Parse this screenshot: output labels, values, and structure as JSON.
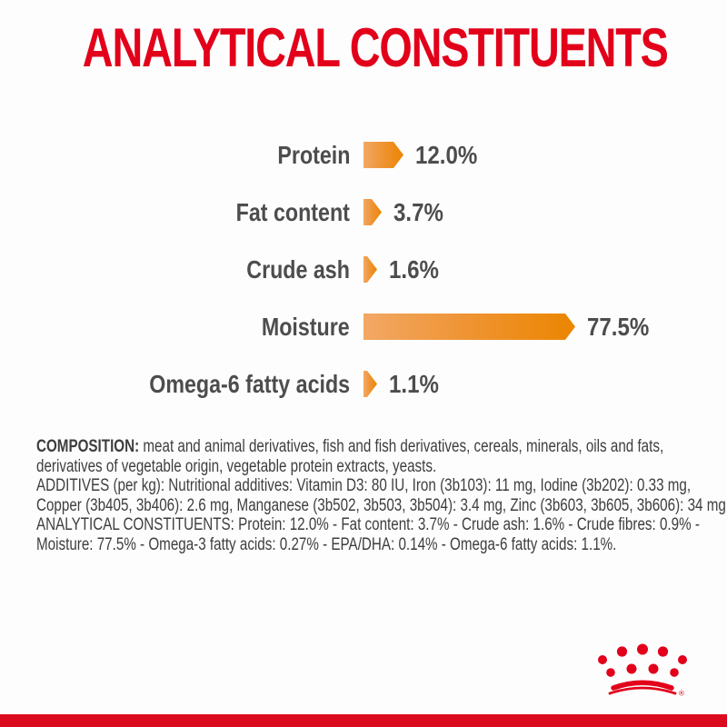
{
  "page": {
    "title": "ANALYTICAL CONSTITUENTS",
    "brand_red": "#E2001A",
    "footer_bar_red": "#DB0A1E",
    "text_gray": "#3E3E40",
    "label_gray": "#4D4D4F"
  },
  "chart_data": {
    "type": "bar",
    "orientation": "horizontal",
    "categories": [
      "Protein",
      "Fat content",
      "Crude ash",
      "Moisture",
      "Omega-6 fatty acids"
    ],
    "values": [
      12.0,
      3.7,
      1.6,
      77.5,
      1.1
    ],
    "value_labels": [
      "12.0%",
      "3.7%",
      "1.6%",
      "77.5%",
      "1.1%"
    ],
    "xlim": [
      0,
      77.5
    ],
    "bar_color_light": "#F2A865",
    "bar_color_dark": "#EC8500",
    "grid": false,
    "legend": "none",
    "title": "",
    "xlabel": "",
    "ylabel": ""
  },
  "info": {
    "composition_label": "COMPOSITION:",
    "composition_lines": [
      " meat and animal derivatives, fish and fish derivatives, cereals, minerals, oils and fats,",
      "derivatives of vegetable origin, vegetable protein extracts, yeasts."
    ],
    "additives_lines": [
      "ADDITIVES (per kg): Nutritional additives: Vitamin D3: 80 IU, Iron (3b103): 11 mg, Iodine (3b202): 0.33 mg,",
      "Copper (3b405, 3b406): 2.6 mg, Manganese (3b502, 3b503, 3b504): 3.4 mg, Zinc (3b603, 3b605, 3b606): 34 mg."
    ],
    "analytical_lines": [
      "ANALYTICAL CONSTITUENTS: Protein: 12.0% - Fat content: 3.7% - Crude ash: 1.6% - Crude fibres: 0.9% -",
      "Moisture: 77.5% - Omega-3 fatty acids: 0.27% - EPA/DHA: 0.14% - Omega-6 fatty acids: 1.1%."
    ]
  },
  "logo": {
    "name": "Royal Canin crown",
    "registered_mark": "®"
  }
}
